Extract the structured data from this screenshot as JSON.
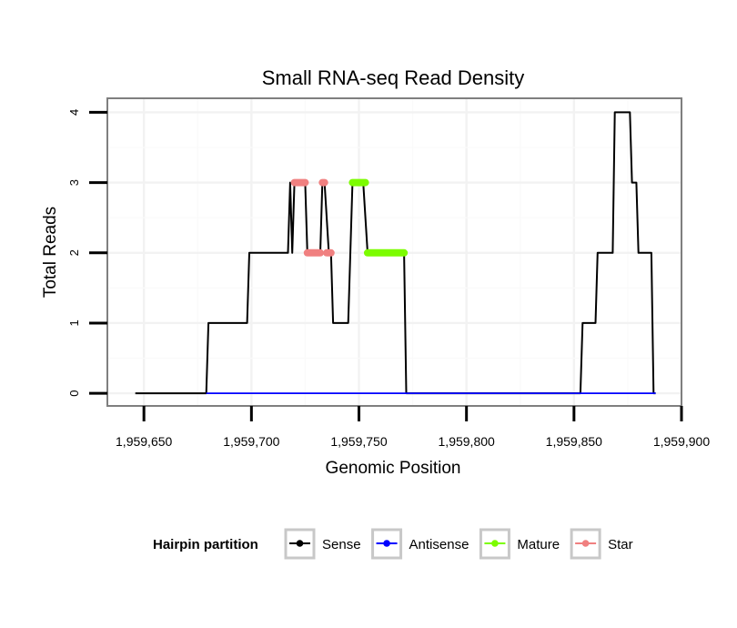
{
  "chart_data": {
    "type": "line",
    "title": "Small RNA-seq Read Density",
    "xlabel": "Genomic Position",
    "ylabel": "Total Reads",
    "xlim": [
      1959633,
      1959900
    ],
    "ylim": [
      -0.18,
      4.2
    ],
    "x_ticks": [
      1959650,
      1959700,
      1959750,
      1959800,
      1959850,
      1959900
    ],
    "x_tick_labels": [
      "1,959,650",
      "1,959,700",
      "1,959,750",
      "1,959,800",
      "1,959,850",
      "1,959,900"
    ],
    "y_ticks": [
      0,
      1,
      2,
      3,
      4
    ],
    "y_tick_labels": [
      "0",
      "1",
      "2",
      "3",
      "4"
    ],
    "grid": true,
    "legend": {
      "title": "Hairpin partition",
      "position": "bottom",
      "entries": [
        "Sense",
        "Antisense",
        "Mature",
        "Star"
      ]
    },
    "series": [
      {
        "name": "Sense",
        "color": "#000000",
        "style": "line",
        "points": [
          [
            1959646,
            0
          ],
          [
            1959679,
            0
          ],
          [
            1959680,
            1
          ],
          [
            1959698,
            1
          ],
          [
            1959699,
            2
          ],
          [
            1959717,
            2
          ],
          [
            1959718,
            3
          ],
          [
            1959719,
            2
          ],
          [
            1959720,
            3
          ],
          [
            1959725,
            3
          ],
          [
            1959726,
            2
          ],
          [
            1959732,
            2
          ],
          [
            1959733,
            3
          ],
          [
            1959734,
            3
          ],
          [
            1959736,
            2
          ],
          [
            1959737,
            2
          ],
          [
            1959738,
            1
          ],
          [
            1959745,
            1
          ],
          [
            1959747,
            3
          ],
          [
            1959752,
            3
          ],
          [
            1959754,
            2
          ],
          [
            1959771,
            2
          ],
          [
            1959772,
            0
          ],
          [
            1959853,
            0
          ],
          [
            1959854,
            1
          ],
          [
            1959860,
            1
          ],
          [
            1959861,
            2
          ],
          [
            1959868,
            2
          ],
          [
            1959869,
            4
          ],
          [
            1959876,
            4
          ],
          [
            1959877,
            3
          ],
          [
            1959879,
            3
          ],
          [
            1959880,
            2
          ],
          [
            1959886,
            2
          ],
          [
            1959887,
            0
          ],
          [
            1959888,
            0
          ]
        ]
      },
      {
        "name": "Antisense",
        "color": "#0000ff",
        "style": "line",
        "points": [
          [
            1959679,
            0
          ],
          [
            1959888,
            0
          ]
        ]
      },
      {
        "name": "Mature",
        "color": "#7cfc00",
        "style": "segments",
        "segments": [
          {
            "x": [
              1959747,
              1959753
            ],
            "y": 3
          },
          {
            "x": [
              1959754,
              1959771
            ],
            "y": 2
          }
        ]
      },
      {
        "name": "Star",
        "color": "#f08080",
        "style": "segments",
        "segments": [
          {
            "x": [
              1959720,
              1959725
            ],
            "y": 3
          },
          {
            "x": [
              1959733,
              1959734
            ],
            "y": 3
          },
          {
            "x": [
              1959726,
              1959732
            ],
            "y": 2
          },
          {
            "x": [
              1959735,
              1959737
            ],
            "y": 2
          }
        ]
      }
    ]
  }
}
